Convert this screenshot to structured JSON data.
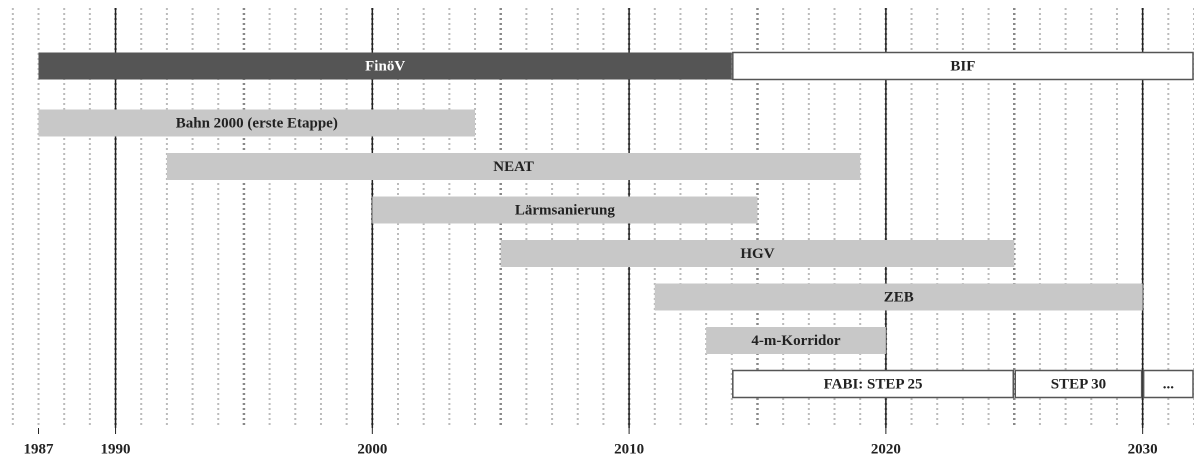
{
  "chart_data": {
    "type": "timeline",
    "xlim": [
      1985.5,
      2032
    ],
    "xticks": [
      1987,
      1990,
      2000,
      2010,
      2020,
      2030
    ],
    "major_lines": [
      1990,
      2000,
      2010,
      2020,
      2030
    ],
    "grid": true,
    "rows": [
      [
        {
          "label": "FinöV",
          "start": 1987,
          "end": 2014,
          "color": "#555555"
        },
        {
          "label": "BIF",
          "start": 2014,
          "end": 2032,
          "color": "#ffffff"
        }
      ],
      [
        {
          "label": "Bahn 2000 (erste Etappe)",
          "start": 1987,
          "end": 2004,
          "color": "#c8c8c8"
        }
      ],
      [
        {
          "label": "NEAT",
          "start": 1992,
          "end": 2019,
          "color": "#c8c8c8"
        }
      ],
      [
        {
          "label": "Lärmsanierung",
          "start": 2000,
          "end": 2015,
          "color": "#c8c8c8"
        }
      ],
      [
        {
          "label": "HGV",
          "start": 2005,
          "end": 2025,
          "color": "#c8c8c8"
        }
      ],
      [
        {
          "label": "ZEB",
          "start": 2011,
          "end": 2030,
          "color": "#c8c8c8"
        }
      ],
      [
        {
          "label": "4-m-Korridor",
          "start": 2013,
          "end": 2020,
          "color": "#c8c8c8"
        }
      ],
      [
        {
          "label": "FABI: STEP 25",
          "start": 2014,
          "end": 2025,
          "color": "#ffffff"
        },
        {
          "label": "STEP 30",
          "start": 2025,
          "end": 2030,
          "color": "#ffffff"
        },
        {
          "label": "...",
          "start": 2030,
          "end": 2032,
          "color": "#ffffff"
        }
      ]
    ]
  }
}
